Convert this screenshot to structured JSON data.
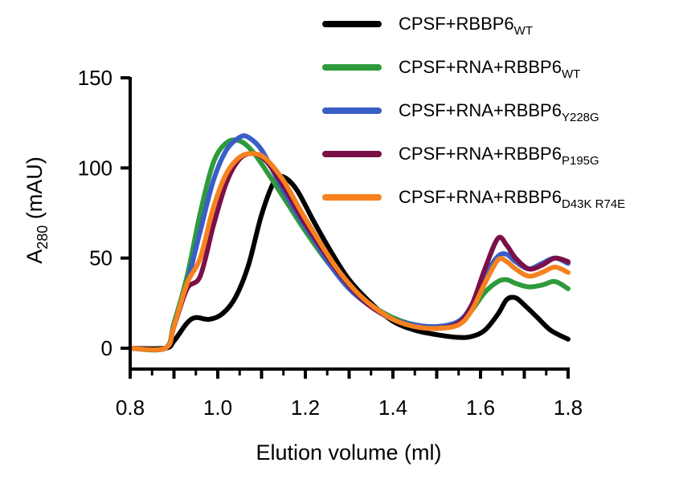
{
  "chart_data": {
    "type": "line",
    "title": "",
    "xlabel": "Elution volume (ml)",
    "ylabel": {
      "main": "A",
      "sub": "280",
      "rest": " (mAU)"
    },
    "xlim": [
      0.8,
      1.8
    ],
    "ylim": [
      0,
      150
    ],
    "x_ticks": [
      {
        "value": 0.8,
        "label": "0.8"
      },
      {
        "value": 1.0,
        "label": "1.0"
      },
      {
        "value": 1.2,
        "label": "1.2"
      },
      {
        "value": 1.4,
        "label": "1.4"
      },
      {
        "value": 1.6,
        "label": "1.6"
      },
      {
        "value": 1.8,
        "label": "1.8"
      }
    ],
    "y_ticks": [
      {
        "value": 0,
        "label": "0"
      },
      {
        "value": 50,
        "label": "50"
      },
      {
        "value": 100,
        "label": "100"
      },
      {
        "value": 150,
        "label": "150"
      }
    ],
    "grid": false,
    "legend_position": "top-right",
    "series": [
      {
        "name": "CPSF+RBBP6",
        "name_sub": "WT",
        "color": "#000000",
        "points": [
          [
            0.8,
            0
          ],
          [
            0.88,
            0
          ],
          [
            0.9,
            4
          ],
          [
            0.93,
            14
          ],
          [
            0.95,
            17
          ],
          [
            0.98,
            16
          ],
          [
            1.01,
            19
          ],
          [
            1.04,
            28
          ],
          [
            1.07,
            46
          ],
          [
            1.1,
            74
          ],
          [
            1.13,
            93
          ],
          [
            1.15,
            95
          ],
          [
            1.18,
            88
          ],
          [
            1.22,
            70
          ],
          [
            1.26,
            53
          ],
          [
            1.3,
            38
          ],
          [
            1.35,
            25
          ],
          [
            1.4,
            15
          ],
          [
            1.45,
            10
          ],
          [
            1.5,
            7.5
          ],
          [
            1.55,
            6
          ],
          [
            1.58,
            6.5
          ],
          [
            1.61,
            10
          ],
          [
            1.64,
            19
          ],
          [
            1.66,
            27
          ],
          [
            1.68,
            28
          ],
          [
            1.7,
            24
          ],
          [
            1.73,
            17
          ],
          [
            1.76,
            10
          ],
          [
            1.8,
            5
          ]
        ]
      },
      {
        "name": "CPSF+RNA+RBBP6",
        "name_sub": "WT",
        "color": "#2e9a3c",
        "points": [
          [
            0.8,
            0
          ],
          [
            0.88,
            0
          ],
          [
            0.9,
            14
          ],
          [
            0.93,
            40
          ],
          [
            0.96,
            75
          ],
          [
            0.99,
            103
          ],
          [
            1.02,
            114
          ],
          [
            1.05,
            115
          ],
          [
            1.08,
            109
          ],
          [
            1.12,
            95
          ],
          [
            1.16,
            80
          ],
          [
            1.2,
            65
          ],
          [
            1.25,
            48
          ],
          [
            1.3,
            34
          ],
          [
            1.35,
            24
          ],
          [
            1.4,
            17
          ],
          [
            1.45,
            13
          ],
          [
            1.5,
            12
          ],
          [
            1.55,
            14
          ],
          [
            1.58,
            21
          ],
          [
            1.61,
            31
          ],
          [
            1.64,
            37
          ],
          [
            1.66,
            38
          ],
          [
            1.68,
            36
          ],
          [
            1.71,
            34
          ],
          [
            1.74,
            35
          ],
          [
            1.77,
            37
          ],
          [
            1.8,
            33
          ]
        ]
      },
      {
        "name": "CPSF+RNA+RBBP6",
        "name_sub": "Y228G",
        "color": "#3a5ec7",
        "points": [
          [
            0.8,
            0
          ],
          [
            0.88,
            0
          ],
          [
            0.9,
            12
          ],
          [
            0.93,
            36
          ],
          [
            0.96,
            65
          ],
          [
            0.99,
            93
          ],
          [
            1.02,
            110
          ],
          [
            1.05,
            117
          ],
          [
            1.07,
            117
          ],
          [
            1.1,
            110
          ],
          [
            1.14,
            92
          ],
          [
            1.18,
            75
          ],
          [
            1.22,
            60
          ],
          [
            1.26,
            45
          ],
          [
            1.3,
            33
          ],
          [
            1.35,
            23
          ],
          [
            1.4,
            16
          ],
          [
            1.45,
            13
          ],
          [
            1.5,
            12
          ],
          [
            1.55,
            15
          ],
          [
            1.58,
            24
          ],
          [
            1.61,
            40
          ],
          [
            1.64,
            51
          ],
          [
            1.66,
            52
          ],
          [
            1.68,
            48
          ],
          [
            1.71,
            44
          ],
          [
            1.74,
            47
          ],
          [
            1.77,
            50
          ],
          [
            1.8,
            47
          ]
        ]
      },
      {
        "name": "CPSF+RNA+RBBP6",
        "name_sub": "P195G",
        "color": "#7b1048",
        "points": [
          [
            0.8,
            0
          ],
          [
            0.88,
            0
          ],
          [
            0.9,
            12
          ],
          [
            0.93,
            33
          ],
          [
            0.96,
            40
          ],
          [
            0.99,
            68
          ],
          [
            1.02,
            92
          ],
          [
            1.05,
            105
          ],
          [
            1.08,
            108
          ],
          [
            1.11,
            104
          ],
          [
            1.15,
            90
          ],
          [
            1.19,
            73
          ],
          [
            1.23,
            58
          ],
          [
            1.27,
            44
          ],
          [
            1.31,
            32
          ],
          [
            1.35,
            23
          ],
          [
            1.4,
            16
          ],
          [
            1.45,
            12
          ],
          [
            1.5,
            11
          ],
          [
            1.55,
            14
          ],
          [
            1.58,
            24
          ],
          [
            1.61,
            44
          ],
          [
            1.64,
            61
          ],
          [
            1.66,
            57
          ],
          [
            1.68,
            50
          ],
          [
            1.71,
            44
          ],
          [
            1.74,
            46
          ],
          [
            1.77,
            50
          ],
          [
            1.8,
            48
          ]
        ]
      },
      {
        "name": "CPSF+RNA+RBBP6",
        "name_sub": "D43K R74E",
        "color": "#f5821f",
        "points": [
          [
            0.8,
            0
          ],
          [
            0.88,
            0
          ],
          [
            0.9,
            12
          ],
          [
            0.93,
            36
          ],
          [
            0.96,
            50
          ],
          [
            0.99,
            78
          ],
          [
            1.02,
            97
          ],
          [
            1.05,
            106
          ],
          [
            1.08,
            108
          ],
          [
            1.11,
            105
          ],
          [
            1.15,
            93
          ],
          [
            1.19,
            76
          ],
          [
            1.23,
            60
          ],
          [
            1.27,
            45
          ],
          [
            1.31,
            33
          ],
          [
            1.35,
            24
          ],
          [
            1.4,
            16
          ],
          [
            1.45,
            12
          ],
          [
            1.5,
            11
          ],
          [
            1.55,
            13
          ],
          [
            1.58,
            21
          ],
          [
            1.61,
            36
          ],
          [
            1.64,
            49
          ],
          [
            1.66,
            48
          ],
          [
            1.68,
            44
          ],
          [
            1.71,
            40
          ],
          [
            1.74,
            42
          ],
          [
            1.77,
            45
          ],
          [
            1.8,
            42
          ]
        ]
      }
    ]
  }
}
